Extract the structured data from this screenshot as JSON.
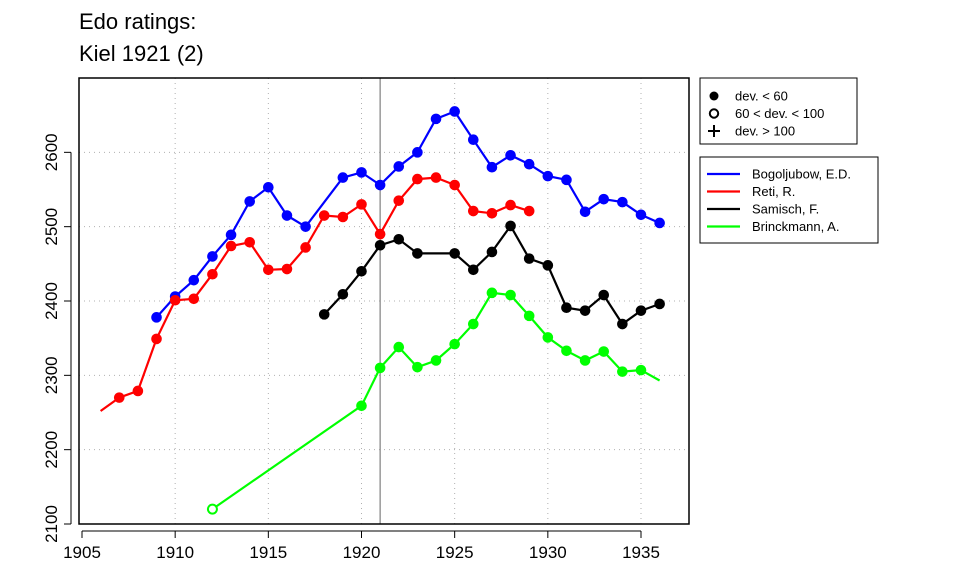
{
  "chart_data": {
    "type": "line",
    "title_lines": [
      "Edo ratings:",
      "Kiel 1921 (2)"
    ],
    "xlabel": "",
    "ylabel": "",
    "xlim": [
      1905,
      1937
    ],
    "ylim": [
      2100,
      2700
    ],
    "x_ticks": [
      1905,
      1910,
      1915,
      1920,
      1925,
      1930,
      1935
    ],
    "y_ticks": [
      2100,
      2200,
      2300,
      2400,
      2500,
      2600
    ],
    "grid": true,
    "reference_line_x": 1921,
    "markers_legend": [
      {
        "label": "dev. < 60",
        "marker": "filled-circle"
      },
      {
        "label": "60 < dev. < 100",
        "marker": "open-circle"
      },
      {
        "label": "dev. > 100",
        "marker": "plus"
      }
    ],
    "series": [
      {
        "name": "Bogoljubow, E.D.",
        "color": "#0000ff",
        "points": [
          {
            "x": 1909,
            "y": 2378,
            "m": "filled"
          },
          {
            "x": 1910,
            "y": 2406,
            "m": "filled"
          },
          {
            "x": 1911,
            "y": 2428,
            "m": "filled"
          },
          {
            "x": 1912,
            "y": 2460,
            "m": "filled"
          },
          {
            "x": 1913,
            "y": 2489,
            "m": "filled"
          },
          {
            "x": 1914,
            "y": 2534,
            "m": "filled"
          },
          {
            "x": 1915,
            "y": 2553,
            "m": "filled"
          },
          {
            "x": 1916,
            "y": 2515,
            "m": "filled"
          },
          {
            "x": 1917,
            "y": 2500,
            "m": "filled"
          },
          {
            "x": 1919,
            "y": 2566,
            "m": "filled"
          },
          {
            "x": 1920,
            "y": 2573,
            "m": "filled"
          },
          {
            "x": 1921,
            "y": 2556,
            "m": "filled"
          },
          {
            "x": 1922,
            "y": 2581,
            "m": "filled"
          },
          {
            "x": 1923,
            "y": 2600,
            "m": "filled"
          },
          {
            "x": 1924,
            "y": 2645,
            "m": "filled"
          },
          {
            "x": 1925,
            "y": 2655,
            "m": "filled"
          },
          {
            "x": 1926,
            "y": 2617,
            "m": "filled"
          },
          {
            "x": 1927,
            "y": 2580,
            "m": "filled"
          },
          {
            "x": 1928,
            "y": 2596,
            "m": "filled"
          },
          {
            "x": 1929,
            "y": 2584,
            "m": "filled"
          },
          {
            "x": 1930,
            "y": 2568,
            "m": "filled"
          },
          {
            "x": 1931,
            "y": 2563,
            "m": "filled"
          },
          {
            "x": 1932,
            "y": 2520,
            "m": "filled"
          },
          {
            "x": 1933,
            "y": 2537,
            "m": "filled"
          },
          {
            "x": 1934,
            "y": 2533,
            "m": "filled"
          },
          {
            "x": 1935,
            "y": 2516,
            "m": "filled"
          },
          {
            "x": 1936,
            "y": 2505,
            "m": "filled"
          }
        ]
      },
      {
        "name": "Reti, R.",
        "color": "#ff0000",
        "points": [
          {
            "x": 1906,
            "y": 2252,
            "m": "none"
          },
          {
            "x": 1907,
            "y": 2270,
            "m": "filled"
          },
          {
            "x": 1908,
            "y": 2279,
            "m": "filled"
          },
          {
            "x": 1909,
            "y": 2349,
            "m": "filled"
          },
          {
            "x": 1910,
            "y": 2401,
            "m": "filled"
          },
          {
            "x": 1911,
            "y": 2403,
            "m": "filled"
          },
          {
            "x": 1912,
            "y": 2436,
            "m": "filled"
          },
          {
            "x": 1913,
            "y": 2474,
            "m": "filled"
          },
          {
            "x": 1914,
            "y": 2479,
            "m": "filled"
          },
          {
            "x": 1915,
            "y": 2442,
            "m": "filled"
          },
          {
            "x": 1916,
            "y": 2443,
            "m": "filled"
          },
          {
            "x": 1917,
            "y": 2472,
            "m": "filled"
          },
          {
            "x": 1918,
            "y": 2515,
            "m": "filled"
          },
          {
            "x": 1919,
            "y": 2513,
            "m": "filled"
          },
          {
            "x": 1920,
            "y": 2530,
            "m": "filled"
          },
          {
            "x": 1921,
            "y": 2490,
            "m": "filled"
          },
          {
            "x": 1922,
            "y": 2535,
            "m": "filled"
          },
          {
            "x": 1923,
            "y": 2564,
            "m": "filled"
          },
          {
            "x": 1924,
            "y": 2566,
            "m": "filled"
          },
          {
            "x": 1925,
            "y": 2556,
            "m": "filled"
          },
          {
            "x": 1926,
            "y": 2521,
            "m": "filled"
          },
          {
            "x": 1927,
            "y": 2518,
            "m": "filled"
          },
          {
            "x": 1928,
            "y": 2529,
            "m": "filled"
          },
          {
            "x": 1929,
            "y": 2521,
            "m": "filled"
          }
        ]
      },
      {
        "name": "Samisch, F.",
        "color": "#000000",
        "points": [
          {
            "x": 1918,
            "y": 2382,
            "m": "filled"
          },
          {
            "x": 1919,
            "y": 2409,
            "m": "filled"
          },
          {
            "x": 1920,
            "y": 2440,
            "m": "filled"
          },
          {
            "x": 1921,
            "y": 2475,
            "m": "filled"
          },
          {
            "x": 1922,
            "y": 2483,
            "m": "filled"
          },
          {
            "x": 1923,
            "y": 2464,
            "m": "filled"
          },
          {
            "x": 1925,
            "y": 2464,
            "m": "filled"
          },
          {
            "x": 1926,
            "y": 2442,
            "m": "filled"
          },
          {
            "x": 1927,
            "y": 2466,
            "m": "filled"
          },
          {
            "x": 1928,
            "y": 2501,
            "m": "filled"
          },
          {
            "x": 1929,
            "y": 2457,
            "m": "filled"
          },
          {
            "x": 1930,
            "y": 2448,
            "m": "filled"
          },
          {
            "x": 1931,
            "y": 2391,
            "m": "filled"
          },
          {
            "x": 1932,
            "y": 2387,
            "m": "filled"
          },
          {
            "x": 1933,
            "y": 2408,
            "m": "filled"
          },
          {
            "x": 1934,
            "y": 2369,
            "m": "filled"
          },
          {
            "x": 1935,
            "y": 2387,
            "m": "filled"
          },
          {
            "x": 1936,
            "y": 2396,
            "m": "filled"
          }
        ]
      },
      {
        "name": "Brinckmann, A.",
        "color": "#00ff00",
        "points": [
          {
            "x": 1912,
            "y": 2120,
            "m": "open"
          },
          {
            "x": 1920,
            "y": 2259,
            "m": "filled"
          },
          {
            "x": 1921,
            "y": 2310,
            "m": "filled"
          },
          {
            "x": 1922,
            "y": 2338,
            "m": "filled"
          },
          {
            "x": 1923,
            "y": 2311,
            "m": "filled"
          },
          {
            "x": 1924,
            "y": 2320,
            "m": "filled"
          },
          {
            "x": 1925,
            "y": 2342,
            "m": "filled"
          },
          {
            "x": 1926,
            "y": 2369,
            "m": "filled"
          },
          {
            "x": 1927,
            "y": 2411,
            "m": "filled"
          },
          {
            "x": 1928,
            "y": 2408,
            "m": "filled"
          },
          {
            "x": 1929,
            "y": 2380,
            "m": "filled"
          },
          {
            "x": 1930,
            "y": 2351,
            "m": "filled"
          },
          {
            "x": 1931,
            "y": 2333,
            "m": "filled"
          },
          {
            "x": 1932,
            "y": 2320,
            "m": "filled"
          },
          {
            "x": 1933,
            "y": 2332,
            "m": "filled"
          },
          {
            "x": 1934,
            "y": 2305,
            "m": "filled"
          },
          {
            "x": 1935,
            "y": 2307,
            "m": "filled"
          },
          {
            "x": 1936,
            "y": 2293,
            "m": "none"
          }
        ]
      }
    ]
  }
}
